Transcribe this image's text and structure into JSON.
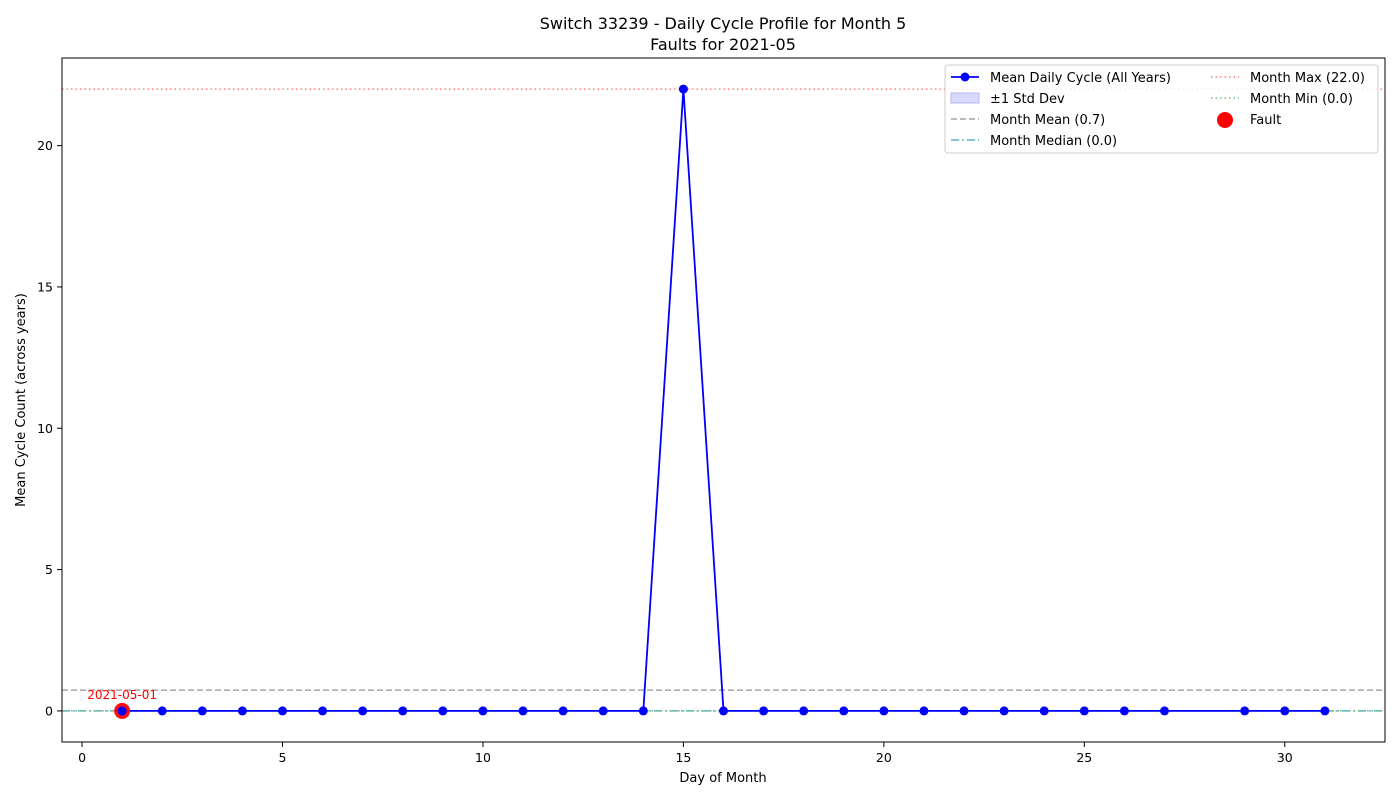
{
  "chart_data": {
    "type": "line",
    "title": "Switch 33239 - Daily Cycle Profile for Month 5",
    "subtitle": "Faults for 2021-05",
    "xlabel": "Day of Month",
    "ylabel": "Mean Cycle Count (across years)",
    "xlim": [
      -0.5,
      32.5
    ],
    "ylim": [
      -1.1,
      23.1
    ],
    "xticks": [
      0,
      5,
      10,
      15,
      20,
      25,
      30
    ],
    "yticks": [
      0,
      5,
      10,
      15,
      20
    ],
    "grid": false,
    "legend_position": "top-right",
    "series": [
      {
        "name": "Mean Daily Cycle (All Years)",
        "color": "#0000ff",
        "x": [
          1,
          2,
          3,
          4,
          5,
          6,
          7,
          8,
          9,
          10,
          11,
          12,
          13,
          14,
          15,
          16,
          17,
          18,
          19,
          20,
          21,
          22,
          23,
          24,
          25,
          26,
          27,
          29,
          30,
          31
        ],
        "values": [
          0,
          0,
          0,
          0,
          0,
          0,
          0,
          0,
          0,
          0,
          0,
          0,
          0,
          0,
          22,
          0,
          0,
          0,
          0,
          0,
          0,
          0,
          0,
          0,
          0,
          0,
          0,
          0,
          0,
          0
        ]
      }
    ],
    "std_band": {
      "name": "±1 Std Dev",
      "color": "#d9d9fb"
    },
    "reference_lines": [
      {
        "name": "Month Mean (0.7)",
        "value": 0.7333,
        "color": "#a6a6a6",
        "style": "dashed"
      },
      {
        "name": "Month Median (0.0)",
        "value": 0.0,
        "color": "#5fb3c0",
        "style": "dashdot"
      },
      {
        "name": "Month Max (22.0)",
        "value": 22.0,
        "color": "#ff8080",
        "style": "dotted"
      },
      {
        "name": "Month Min (0.0)",
        "value": 0.0,
        "color": "#6fbf8a",
        "style": "dotted"
      }
    ],
    "faults": [
      {
        "name": "Fault",
        "x": 1,
        "y": 0,
        "label": "2021-05-01",
        "color": "#ff0000"
      }
    ]
  }
}
